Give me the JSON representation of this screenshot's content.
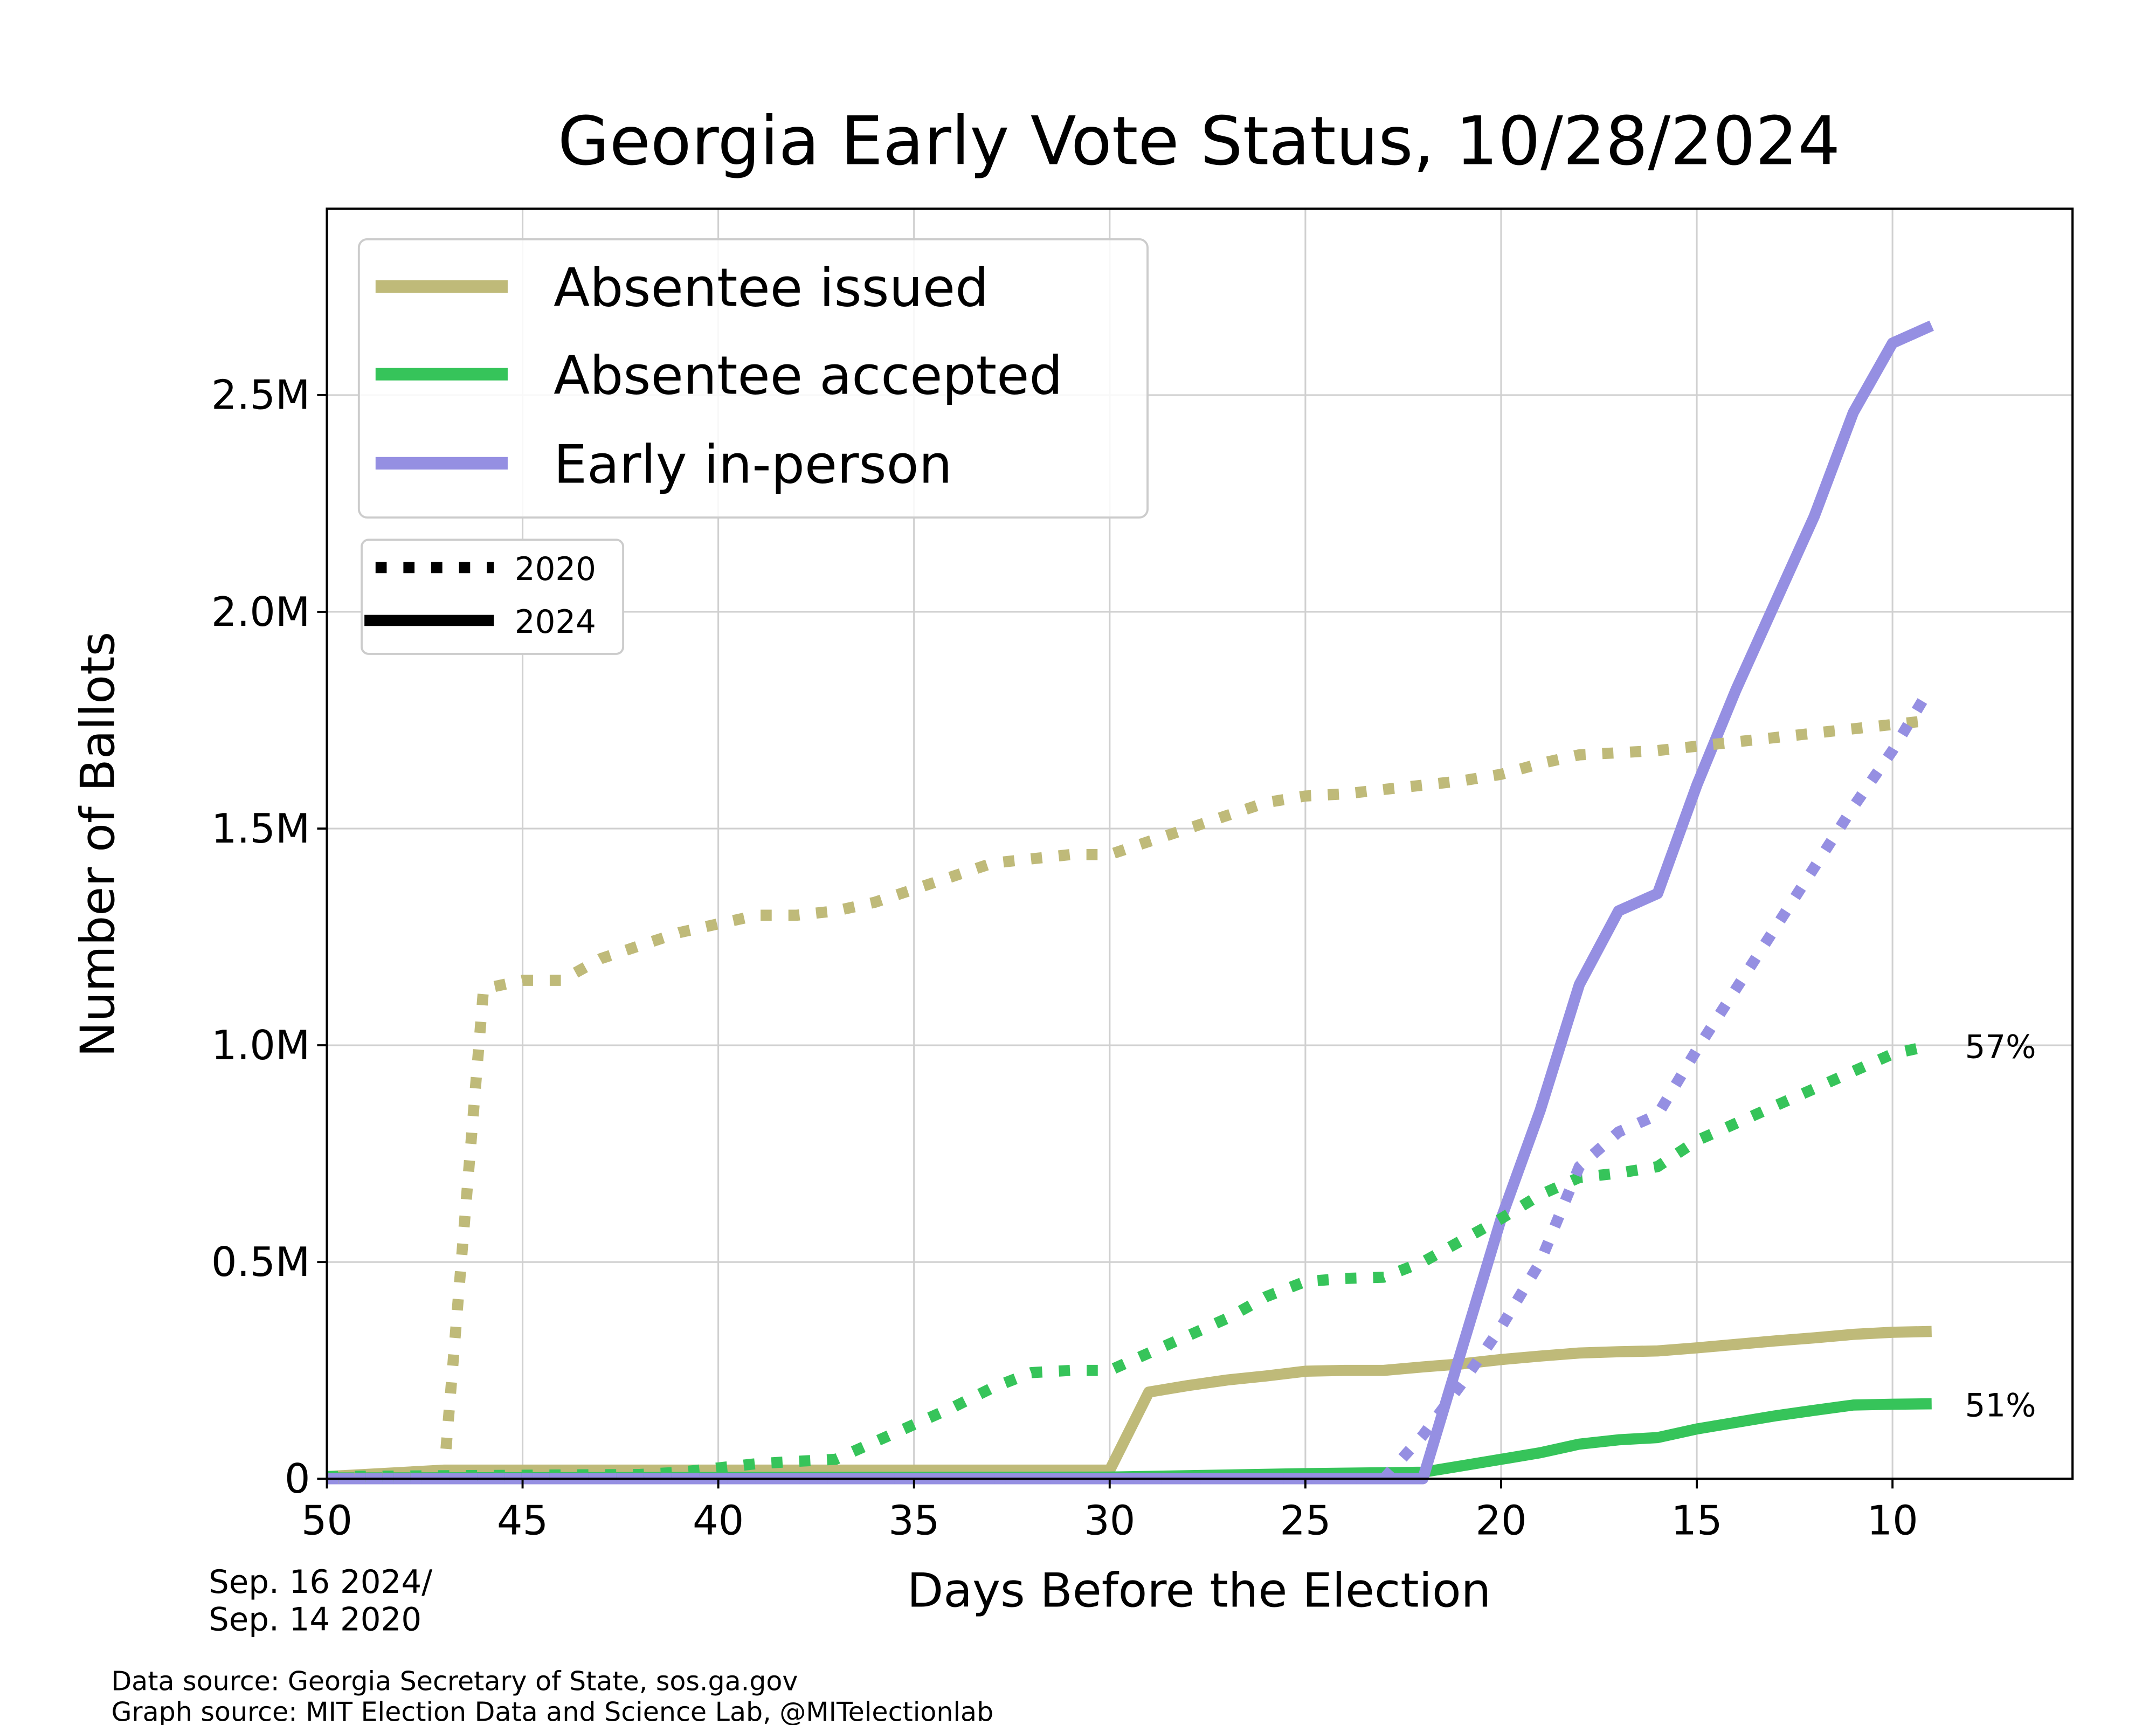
{
  "chart_data": {
    "type": "line",
    "title": "Georgia Early Vote Status, 10/28/2024",
    "xlabel": "Days Before the Election",
    "ylabel": "Number of Ballots",
    "x_start_note": [
      "Sep. 16 2024/",
      "Sep. 14 2020"
    ],
    "xlim": [
      50,
      5.4
    ],
    "ylim": [
      0,
      2.93
    ],
    "x_ticks": [
      50,
      45,
      40,
      35,
      30,
      25,
      20,
      15,
      10
    ],
    "y_ticks": [
      0,
      0.5,
      1.0,
      1.5,
      2.0,
      2.5
    ],
    "y_tick_labels": [
      "0",
      "0.5M",
      "1.0M",
      "1.5M",
      "2.0M",
      "2.5M"
    ],
    "y_unit": "millions of ballots",
    "grid": true,
    "legend": {
      "placement": "top-left",
      "entries": [
        "Absentee issued",
        "Absentee accepted",
        "Early in-person"
      ],
      "style_entries": [
        "2020",
        "2024"
      ]
    },
    "annotations": [
      {
        "text": "57%",
        "x": 9,
        "y": 1.0
      },
      {
        "text": "51%",
        "x": 9,
        "y": 0.173
      }
    ],
    "series": [
      {
        "name": "Absentee issued",
        "year": "2024",
        "color": "#bfba79",
        "style": "solid",
        "x": [
          50,
          47,
          46,
          40,
          35,
          30,
          29,
          28,
          27,
          26,
          25,
          24,
          23,
          22,
          21,
          20,
          19,
          18,
          17,
          16,
          15,
          14,
          13,
          12,
          11,
          10,
          9
        ],
        "y": [
          0.005,
          0.02,
          0.02,
          0.02,
          0.02,
          0.02,
          0.2,
          0.215,
          0.228,
          0.237,
          0.248,
          0.25,
          0.25,
          0.258,
          0.265,
          0.275,
          0.283,
          0.29,
          0.293,
          0.295,
          0.302,
          0.31,
          0.318,
          0.325,
          0.333,
          0.338,
          0.34
        ]
      },
      {
        "name": "Absentee accepted",
        "year": "2024",
        "color": "#36c45a",
        "style": "solid",
        "x": [
          50,
          40,
          30,
          25,
          22,
          21,
          20,
          19,
          18,
          17,
          16,
          15,
          14,
          13,
          12,
          11,
          10,
          9
        ],
        "y": [
          0.002,
          0.003,
          0.004,
          0.012,
          0.015,
          0.03,
          0.045,
          0.06,
          0.08,
          0.09,
          0.095,
          0.115,
          0.13,
          0.145,
          0.158,
          0.17,
          0.172,
          0.173
        ]
      },
      {
        "name": "Early in-person",
        "year": "2024",
        "color": "#958fe2",
        "style": "solid",
        "x": [
          50,
          22,
          21,
          20,
          19,
          18,
          17,
          16,
          15,
          14,
          13,
          12,
          11,
          10,
          9
        ],
        "y": [
          0,
          0,
          0.3,
          0.6,
          0.85,
          1.14,
          1.31,
          1.35,
          1.6,
          1.82,
          2.02,
          2.22,
          2.46,
          2.62,
          2.66
        ]
      },
      {
        "name": "Absentee issued",
        "year": "2020",
        "color": "#bfba79",
        "style": "dotted",
        "x": [
          50,
          48,
          47,
          46,
          45,
          44,
          43,
          42,
          41,
          40,
          39,
          38,
          37,
          36,
          35,
          34,
          33,
          32,
          31,
          30,
          29,
          28,
          27,
          26,
          25,
          24,
          23,
          22,
          21,
          20,
          19,
          18,
          17,
          16,
          15,
          14,
          13,
          12,
          11,
          10,
          9
        ],
        "y": [
          0,
          0.01,
          0.02,
          1.13,
          1.15,
          1.15,
          1.2,
          1.23,
          1.26,
          1.28,
          1.3,
          1.3,
          1.31,
          1.33,
          1.36,
          1.39,
          1.42,
          1.43,
          1.44,
          1.44,
          1.47,
          1.5,
          1.53,
          1.56,
          1.575,
          1.58,
          1.59,
          1.6,
          1.61,
          1.625,
          1.65,
          1.67,
          1.675,
          1.68,
          1.69,
          1.7,
          1.71,
          1.72,
          1.73,
          1.74,
          1.75
        ]
      },
      {
        "name": "Absentee accepted",
        "year": "2020",
        "color": "#36c45a",
        "style": "dotted",
        "x": [
          50,
          42,
          41,
          40,
          39,
          38,
          37,
          36,
          35,
          34,
          33,
          32,
          31,
          30,
          29,
          28,
          27,
          26,
          25,
          24,
          23,
          22,
          21,
          20,
          19,
          18,
          17,
          16,
          15,
          14,
          13,
          12,
          11,
          10,
          9
        ],
        "y": [
          0.005,
          0.01,
          0.015,
          0.025,
          0.035,
          0.04,
          0.045,
          0.085,
          0.125,
          0.165,
          0.21,
          0.245,
          0.25,
          0.25,
          0.29,
          0.33,
          0.37,
          0.42,
          0.455,
          0.462,
          0.465,
          0.5,
          0.55,
          0.6,
          0.655,
          0.695,
          0.705,
          0.72,
          0.78,
          0.82,
          0.86,
          0.9,
          0.94,
          0.98,
          1.0
        ]
      },
      {
        "name": "Early in-person",
        "year": "2020",
        "color": "#958fe2",
        "style": "dotted",
        "x": [
          50,
          23,
          22,
          21,
          20,
          19,
          18,
          17,
          16,
          15,
          14,
          13,
          12,
          11,
          10,
          9.2
        ],
        "y": [
          0,
          0,
          0.1,
          0.22,
          0.35,
          0.5,
          0.72,
          0.8,
          0.84,
          0.99,
          1.13,
          1.27,
          1.41,
          1.55,
          1.68,
          1.8
        ]
      }
    ]
  },
  "footer": {
    "data_source": "Data source: Georgia Secretary of State, sos.ga.gov",
    "graph_source": "Graph source: MIT Election Data and Science Lab, @MITelectionlab"
  }
}
